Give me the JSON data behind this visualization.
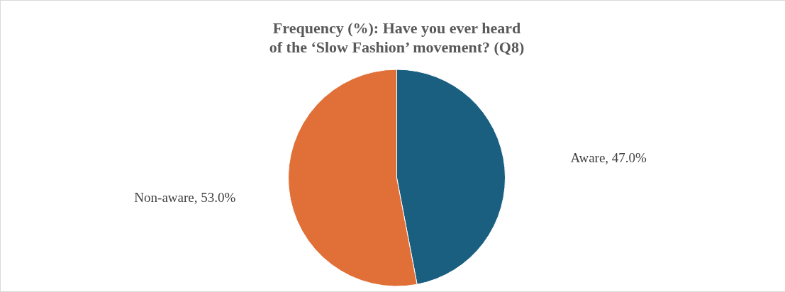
{
  "chart_data": {
    "type": "pie",
    "title": [
      "Frequency (%): Have you ever heard",
      "of the ‘Slow Fashion’ movement? (Q8)"
    ],
    "categories": [
      "Aware",
      "Non-aware"
    ],
    "values": [
      47.0,
      53.0
    ],
    "colors": [
      "#1a5e80",
      "#e07038"
    ],
    "value_labels": [
      "47.0%",
      "53.0%"
    ],
    "legend": false
  }
}
